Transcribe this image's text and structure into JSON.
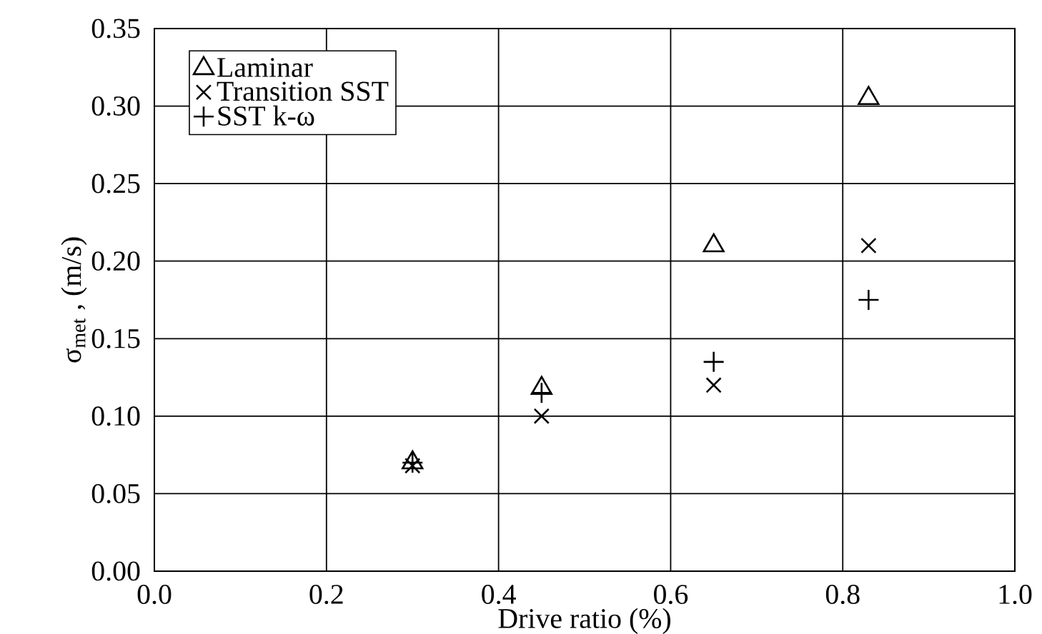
{
  "chart_data": {
    "type": "scatter",
    "xlabel": "Drive ratio (%)",
    "ylabel": "σ$_{met}$ , (m/s)",
    "series": [
      {
        "name": "Laminar",
        "color": "#000000",
        "marker": "triangle",
        "x": [
          0.3,
          0.45,
          0.65,
          0.83
        ],
        "values": [
          0.07,
          0.118,
          0.21,
          0.305
        ]
      },
      {
        "name": "Transition SST",
        "color": "#000000",
        "marker": "cross",
        "x": [
          0.3,
          0.45,
          0.65,
          0.83
        ],
        "values": [
          0.068,
          0.1,
          0.12,
          0.21
        ]
      },
      {
        "name": "SST k-ω",
        "color": "#000000",
        "marker": "plus",
        "x": [
          0.3,
          0.45,
          0.65,
          0.83
        ],
        "values": [
          0.07,
          0.115,
          0.135,
          0.175
        ]
      }
    ],
    "xlim": [
      0.0,
      1.0
    ],
    "ylim": [
      0.0,
      0.35
    ],
    "xticks": [
      {
        "value": 0.0,
        "label": "0.0"
      },
      {
        "value": 0.2,
        "label": "0.2"
      },
      {
        "value": 0.4,
        "label": "0.4"
      },
      {
        "value": 0.6,
        "label": "0.6"
      },
      {
        "value": 0.8,
        "label": "0.8"
      },
      {
        "value": 1.0,
        "label": "1.0"
      }
    ],
    "yticks": [
      {
        "value": 0.0,
        "label": "0.00"
      },
      {
        "value": 0.05,
        "label": "0.05"
      },
      {
        "value": 0.1,
        "label": "0.10"
      },
      {
        "value": 0.15,
        "label": "0.15"
      },
      {
        "value": 0.2,
        "label": "0.20"
      },
      {
        "value": 0.25,
        "label": "0.25"
      },
      {
        "value": 0.3,
        "label": "0.30"
      },
      {
        "value": 0.35,
        "label": "0.35"
      }
    ],
    "grid": true,
    "legend": "top left"
  }
}
